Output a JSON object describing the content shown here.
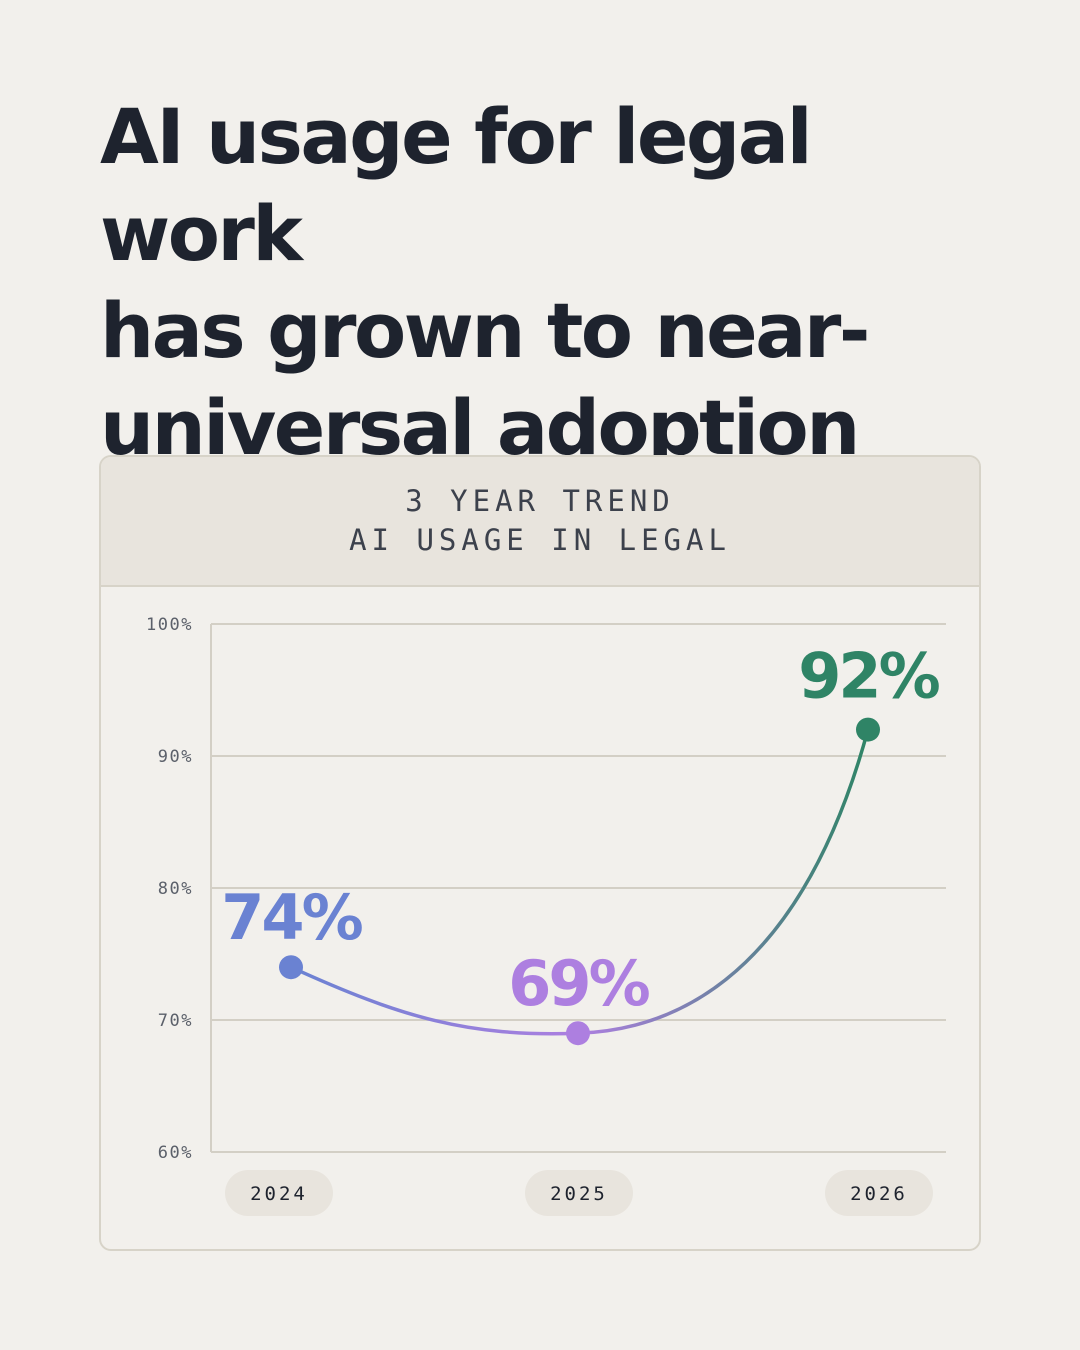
{
  "headline": {
    "line1": "AI usage for legal work",
    "line2": "has grown to near-",
    "line3": "universal adoption"
  },
  "card": {
    "title_line1": "3 YEAR TREND",
    "title_line2": "AI USAGE IN LEGAL"
  },
  "chart_data": {
    "type": "line",
    "title": "3 YEAR TREND AI USAGE IN LEGAL",
    "categories": [
      "2024",
      "2025",
      "2026"
    ],
    "values": [
      74,
      69,
      92
    ],
    "data_labels": [
      "74%",
      "69%",
      "92%"
    ],
    "point_colors": [
      "#6a82d2",
      "#ad7fe0",
      "#2f8466"
    ],
    "yticks": [
      60,
      70,
      80,
      90,
      100
    ],
    "ytick_labels": [
      "60%",
      "70%",
      "80%",
      "90%",
      "100%"
    ],
    "ylim": [
      60,
      100
    ],
    "grid": true,
    "xlabel": "",
    "ylabel": ""
  }
}
